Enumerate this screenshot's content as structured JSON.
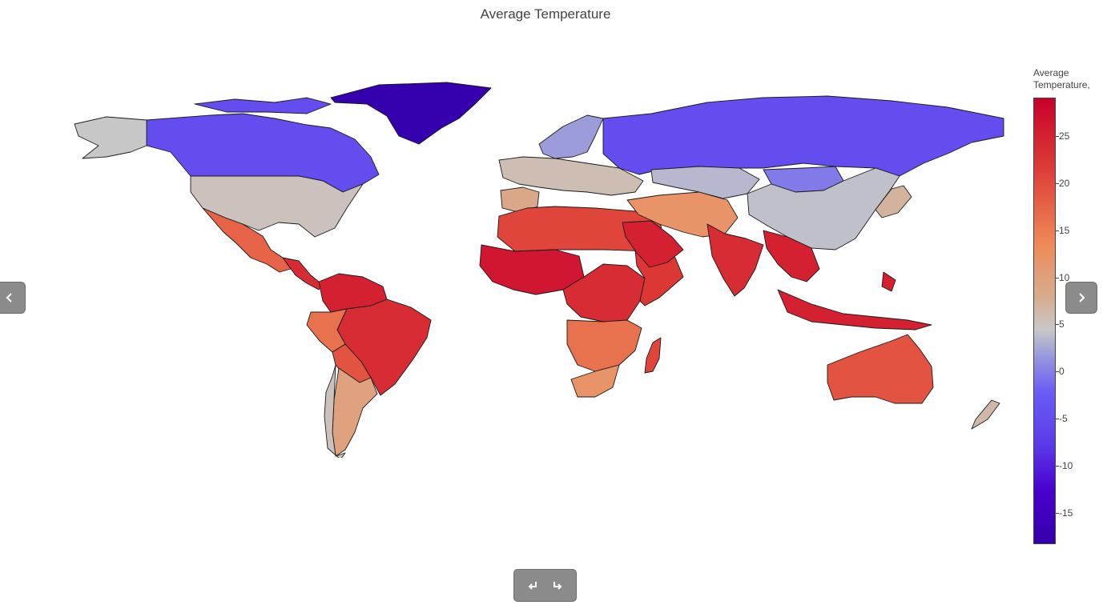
{
  "chart": {
    "title": "Average Temperature",
    "colorbar_title": "Average Temperature,",
    "colorscale": [
      "#3300aa",
      "#4a00d0",
      "#5a3ae8",
      "#6a5cf4",
      "#9898dc",
      "#c8c8c8",
      "#d6ad92",
      "#ef8a58",
      "#dc3a36",
      "#c8002c"
    ],
    "ticks": [
      "25",
      "20",
      "15",
      "10",
      "5",
      "0",
      "-5",
      "-10",
      "-15"
    ]
  },
  "chart_data": {
    "type": "choropleth",
    "title": "Average Temperature",
    "colorbar_title": "Average Temperature,",
    "zrange": [
      -18.5,
      29
    ],
    "ticks": [
      25,
      20,
      15,
      10,
      5,
      0,
      -5,
      -10,
      -15
    ],
    "regions": [
      {
        "name": "Greenland",
        "value": -18
      },
      {
        "name": "Canada",
        "value": -5
      },
      {
        "name": "Russia",
        "value": -5
      },
      {
        "name": "Alaska",
        "value": 8
      },
      {
        "name": "United States",
        "value": 9
      },
      {
        "name": "Mexico",
        "value": 21
      },
      {
        "name": "Central America",
        "value": 25
      },
      {
        "name": "Northern South America",
        "value": 26
      },
      {
        "name": "Brazil",
        "value": 25
      },
      {
        "name": "Peru",
        "value": 20
      },
      {
        "name": "Bolivia/Paraguay",
        "value": 22
      },
      {
        "name": "Argentina",
        "value": 15
      },
      {
        "name": "Chile",
        "value": 9
      },
      {
        "name": "Scandinavia",
        "value": 3
      },
      {
        "name": "Western Europe",
        "value": 10
      },
      {
        "name": "Iberia",
        "value": 14
      },
      {
        "name": "North Africa",
        "value": 23
      },
      {
        "name": "West Africa",
        "value": 27
      },
      {
        "name": "Central Africa",
        "value": 25
      },
      {
        "name": "East Africa",
        "value": 24
      },
      {
        "name": "Southern Africa",
        "value": 20
      },
      {
        "name": "South Africa",
        "value": 17
      },
      {
        "name": "Madagascar",
        "value": 23
      },
      {
        "name": "Arabian Peninsula",
        "value": 26
      },
      {
        "name": "Middle East",
        "value": 17
      },
      {
        "name": "Kazakhstan",
        "value": 6
      },
      {
        "name": "Mongolia",
        "value": 0
      },
      {
        "name": "China",
        "value": 7
      },
      {
        "name": "India",
        "value": 25
      },
      {
        "name": "Southeast Asia",
        "value": 26
      },
      {
        "name": "Indonesia",
        "value": 26
      },
      {
        "name": "Japan",
        "value": 12
      },
      {
        "name": "Australia",
        "value": 22
      },
      {
        "name": "New Zealand",
        "value": 11
      }
    ]
  }
}
